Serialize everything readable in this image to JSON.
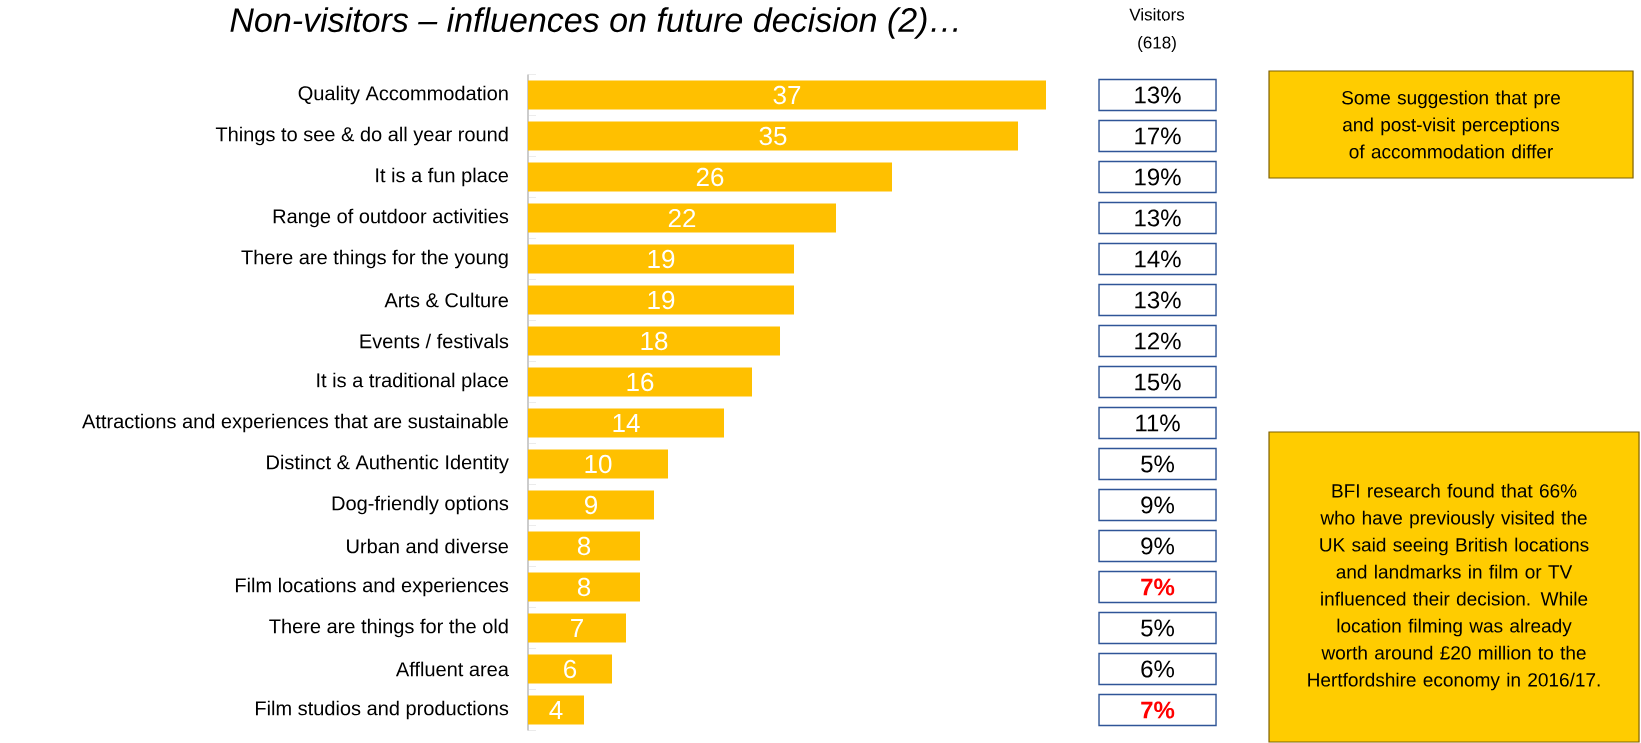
{
  "chart_data": [
    {
      "type": "bar",
      "orientation": "horizontal",
      "title": "Non-visitors – influences on future decision (2)…",
      "categories": [
        "Quality Accommodation",
        "Things to see & do all year round",
        "It is a fun place",
        "Range of outdoor activities",
        "There are things for the young",
        "Arts & Culture",
        "Events / festivals",
        "It is a traditional place",
        "Attractions and experiences that are sustainable",
        "Distinct & Authentic Identity",
        "Dog-friendly options",
        "Urban and diverse",
        "Film locations and experiences",
        "There are things for the old",
        "Affluent area",
        "Film studios and productions"
      ],
      "values": [
        37,
        35,
        26,
        22,
        19,
        19,
        18,
        16,
        14,
        10,
        9,
        8,
        8,
        7,
        6,
        4
      ],
      "color": "#ffc000",
      "data_labels": true,
      "annotations": [
        "Some suggestion that pre and post-visit perceptions of accommodation differ",
        "BFI research found that 66% who have previously visited the UK said seeing British locations and landmarks in film or TV influenced their decision. While location filming was already worth around £20 million to the Hertfordshire economy in 2016/17."
      ]
    },
    {
      "type": "other",
      "title": "Visitors (618)",
      "categories": [
        null,
        null,
        null,
        null,
        null,
        null,
        null,
        null,
        null,
        null,
        null,
        null,
        null,
        null,
        null,
        null
      ],
      "value_labels": [
        "13%",
        "17%",
        "19%",
        "13%",
        "14%",
        "13%",
        "12%",
        "15%",
        "11%",
        "5%",
        "9%",
        "9%",
        "7%",
        "5%",
        "6%",
        "7%"
      ],
      "colors": [
        "#000000",
        "#000000",
        "#000000",
        "#000000",
        "#000000",
        "#000000",
        "#000000",
        "#000000",
        "#000000",
        "#000000",
        "#000000",
        "#000000",
        "#ff0000",
        "#000000",
        "#000000",
        "#ff0000"
      ]
    }
  ]
}
